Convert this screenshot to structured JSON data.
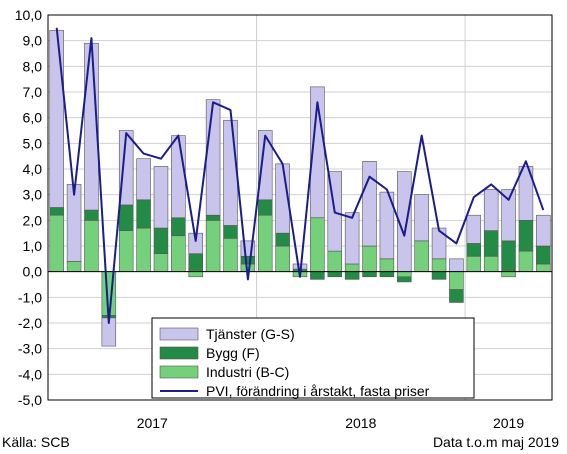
{
  "footer": {
    "source": "Källa: SCB",
    "data_note": "Data t.o.m maj 2019"
  },
  "colors": {
    "services": "#c8c4ec",
    "construction": "#238b45",
    "industry": "#74d07a",
    "line": "#1c1c8c",
    "grid": "#d0d0d0"
  },
  "chart_data": {
    "type": "bar",
    "stacked": true,
    "title": "",
    "xlabel": "",
    "ylabel": "",
    "ylim": [
      -5,
      10
    ],
    "ytick_step": 1,
    "grid": "both",
    "legend_position": "bottom-center",
    "x_year_labels": [
      "2017",
      "2018",
      "2019"
    ],
    "x_year_start_index": [
      0,
      12,
      24
    ],
    "months": 29,
    "series": [
      {
        "name": "Tjänster (G-S)",
        "kind": "bar",
        "values": [
          6.9,
          3.0,
          6.5,
          -1.1,
          2.9,
          1.6,
          2.4,
          3.2,
          0.8,
          4.5,
          4.1,
          0.6,
          2.7,
          2.7,
          0.2,
          5.1,
          3.1,
          2.0,
          3.3,
          2.6,
          3.9,
          1.8,
          1.2,
          0.5,
          1.1,
          1.6,
          2.0,
          2.1,
          1.2
        ]
      },
      {
        "name": "Bygg (F)",
        "kind": "bar",
        "values": [
          0.3,
          0.0,
          0.4,
          -0.1,
          1.0,
          1.1,
          1.0,
          0.7,
          0.7,
          0.2,
          0.5,
          0.3,
          0.6,
          0.5,
          0.1,
          -0.3,
          -0.2,
          -0.3,
          -0.2,
          -0.2,
          -0.2,
          0.0,
          -0.3,
          -0.5,
          0.5,
          1.0,
          1.2,
          1.2,
          0.7
        ]
      },
      {
        "name": "Industri (B-C)",
        "kind": "bar",
        "values": [
          2.2,
          0.4,
          2.0,
          -1.7,
          1.6,
          1.7,
          0.7,
          1.4,
          -0.2,
          2.0,
          1.3,
          0.3,
          2.2,
          1.0,
          -0.2,
          2.1,
          0.8,
          0.3,
          1.0,
          0.5,
          -0.2,
          1.2,
          0.5,
          -0.7,
          0.6,
          0.6,
          -0.2,
          0.8,
          0.3
        ]
      },
      {
        "name": "PVI, förändring i årstakt, fasta priser",
        "kind": "line",
        "values": [
          9.5,
          3.0,
          9.1,
          -2.0,
          5.4,
          4.6,
          4.4,
          5.3,
          1.2,
          6.6,
          6.3,
          -0.3,
          5.3,
          4.2,
          -0.2,
          6.6,
          2.3,
          2.1,
          3.7,
          3.2,
          1.4,
          5.3,
          1.6,
          1.1,
          2.9,
          3.4,
          2.8,
          4.3,
          2.4
        ]
      }
    ]
  }
}
